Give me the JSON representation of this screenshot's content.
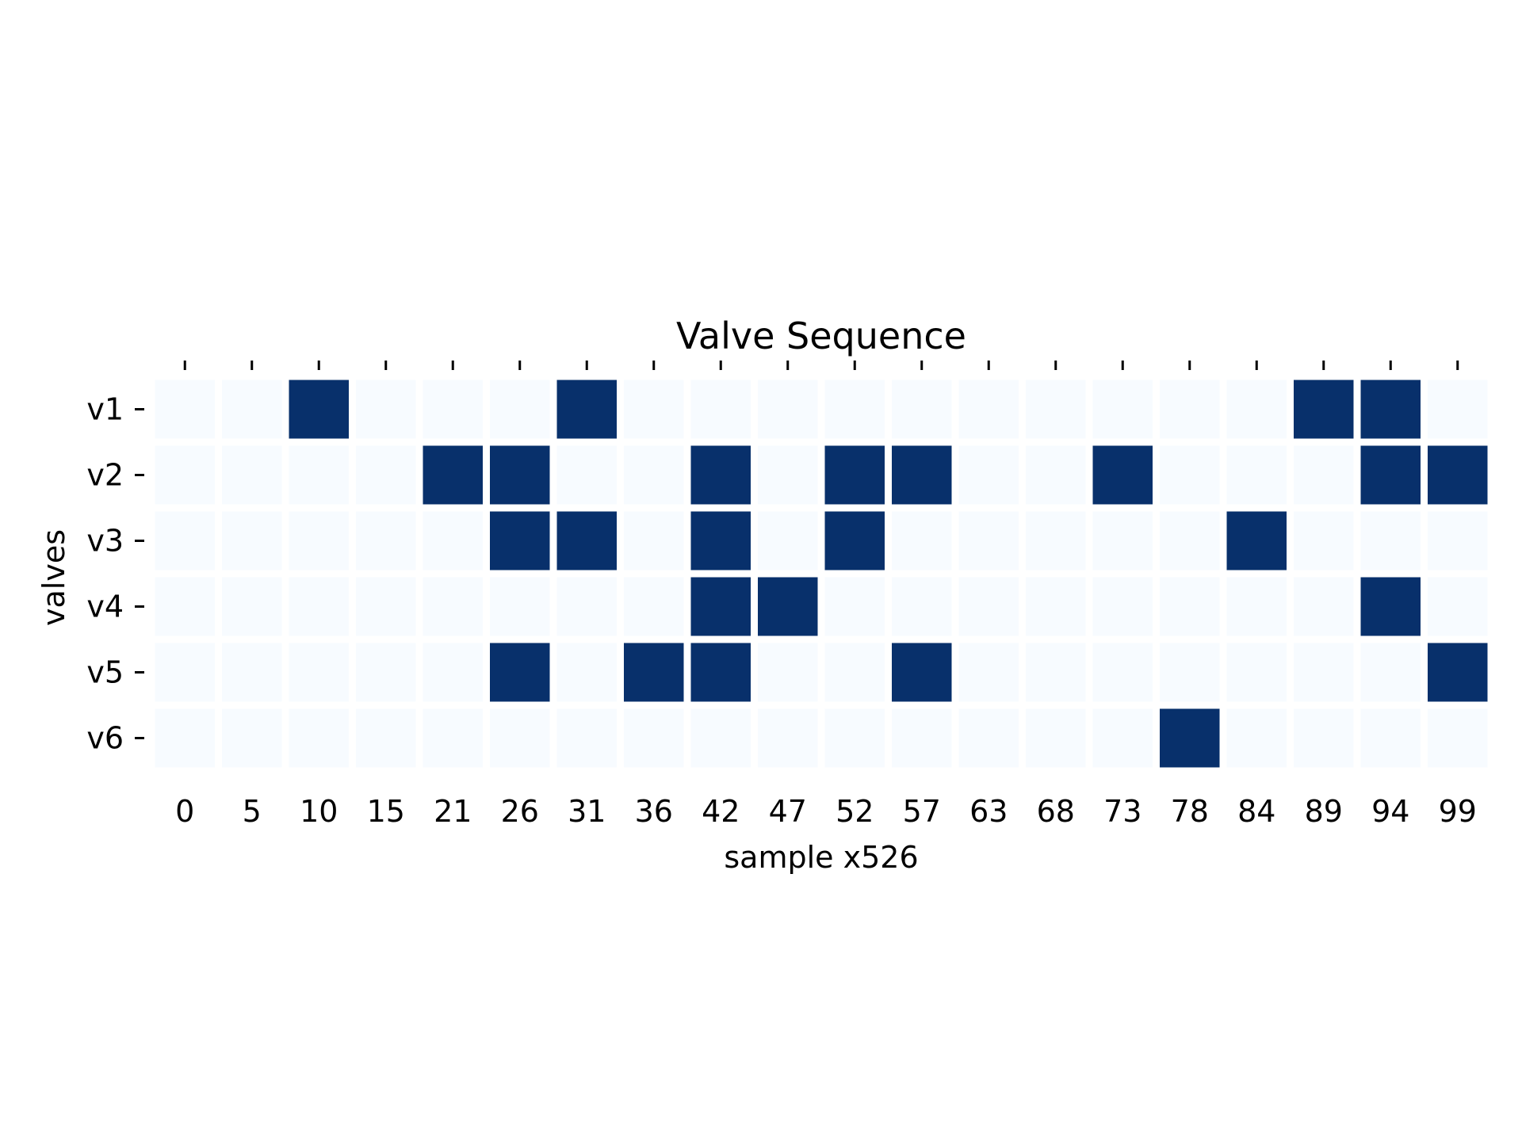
{
  "chart_data": {
    "type": "heatmap",
    "title": "Valve Sequence",
    "xlabel": "sample x526",
    "ylabel": "valves",
    "x_ticks": [
      "0",
      "5",
      "10",
      "15",
      "21",
      "26",
      "31",
      "36",
      "42",
      "47",
      "52",
      "57",
      "63",
      "68",
      "73",
      "78",
      "84",
      "89",
      "94",
      "99"
    ],
    "y_ticks": [
      "v1",
      "v2",
      "v3",
      "v4",
      "v5",
      "v6"
    ],
    "values": [
      [
        0,
        0,
        1,
        0,
        0,
        0,
        1,
        0,
        0,
        0,
        0,
        0,
        0,
        0,
        0,
        0,
        0,
        1,
        1,
        0
      ],
      [
        0,
        0,
        0,
        0,
        1,
        1,
        0,
        0,
        1,
        0,
        1,
        1,
        0,
        0,
        1,
        0,
        0,
        0,
        1,
        1
      ],
      [
        0,
        0,
        0,
        0,
        0,
        1,
        1,
        0,
        1,
        0,
        1,
        0,
        0,
        0,
        0,
        0,
        1,
        0,
        0,
        0
      ],
      [
        0,
        0,
        0,
        0,
        0,
        0,
        0,
        0,
        1,
        1,
        0,
        0,
        0,
        0,
        0,
        0,
        0,
        0,
        1,
        0
      ],
      [
        0,
        0,
        0,
        0,
        0,
        1,
        0,
        1,
        1,
        0,
        0,
        1,
        0,
        0,
        0,
        0,
        0,
        0,
        0,
        1
      ],
      [
        0,
        0,
        0,
        0,
        0,
        0,
        0,
        0,
        0,
        0,
        0,
        0,
        0,
        0,
        0,
        1,
        0,
        0,
        0,
        0
      ]
    ],
    "value_range": [
      0,
      1
    ],
    "colors": {
      "low": "#f7fbff",
      "high": "#08306b",
      "cell_border": "#ffffff"
    },
    "colorbar": false,
    "grid": false
  }
}
